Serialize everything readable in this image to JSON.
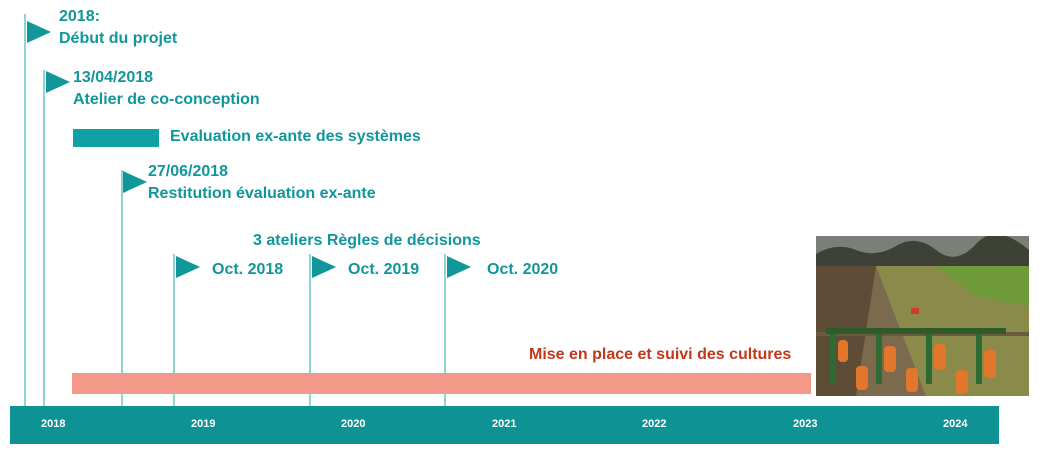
{
  "milestones": {
    "start": {
      "date": "2018:",
      "label": "Début du projet"
    },
    "workshop": {
      "date": "13/04/2018",
      "label": "Atelier de co-conception"
    },
    "evaluation": {
      "label": "Evaluation ex-ante des systèmes"
    },
    "restitution": {
      "date": "27/06/2018",
      "label": "Restitution évaluation ex-ante"
    },
    "decision_rules": {
      "title": "3 ateliers Règles de décisions",
      "sessions": [
        "Oct. 2018",
        "Oct. 2019",
        "Oct. 2020"
      ]
    },
    "crops": {
      "label": "Mise en place et suivi des cultures"
    }
  },
  "axis": {
    "years": [
      "2018",
      "2019",
      "2020",
      "2021",
      "2022",
      "2023",
      "2024"
    ]
  },
  "colors": {
    "teal": "#11969a",
    "axis": "#0e9294",
    "line": "#8fd3d4",
    "salmon": "#f3998a",
    "crops_text": "#c0391b"
  },
  "photo": {
    "icon": "field-cultivator-photo"
  }
}
